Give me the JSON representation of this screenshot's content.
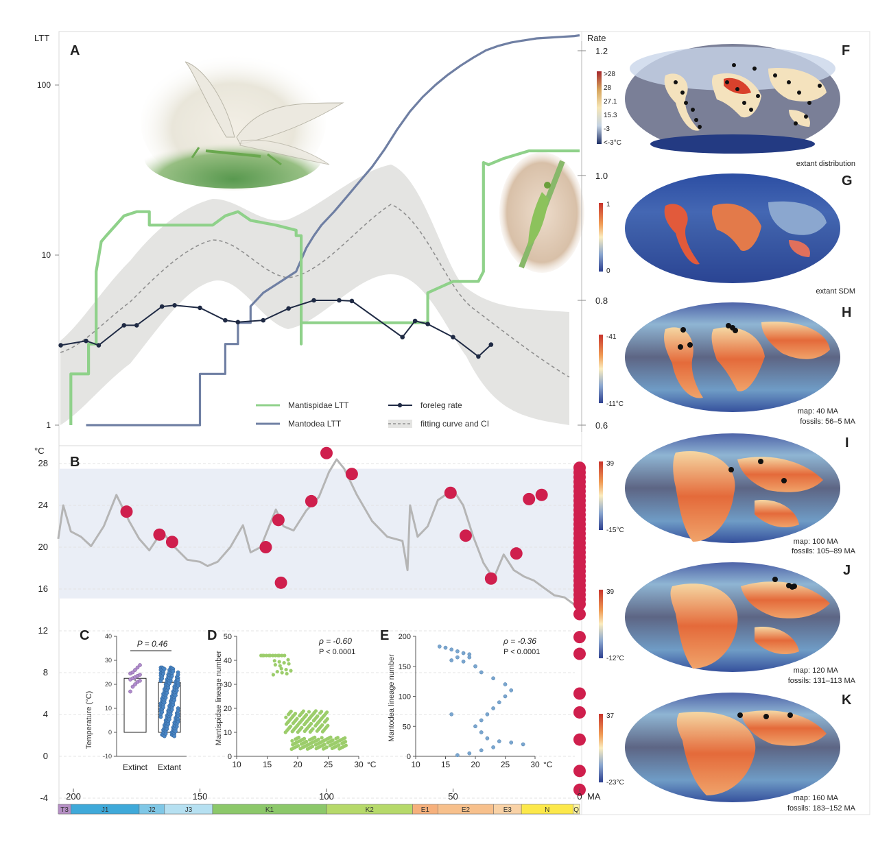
{
  "panel_letters": {
    "A": "A",
    "B": "B",
    "C": "C",
    "D": "D",
    "E": "E",
    "F": "F",
    "G": "G",
    "H": "H",
    "I": "I",
    "J": "J",
    "K": "K"
  },
  "colors": {
    "mantispidae": "#8fd18a",
    "mantodea": "#6f7fa3",
    "foreleg": "#1f2a44",
    "fit": "#8f8f8f",
    "ci": "#e4e4e2",
    "temp_line": "#b5b5b5",
    "temp_point": "#cf1f4d",
    "band": "#eaeef6",
    "extinct": "#b08ccc",
    "extant": "#4a86c5",
    "scatter_d": "#9ccd6b",
    "scatter_e": "#7aa6cf",
    "ocean": "#6b6f8a",
    "map_warm": "#e2763f",
    "map_cold": "#2e4c9c"
  },
  "chart_data": [
    {
      "panel": "A",
      "type": "line",
      "x_unit": "MA",
      "left_axis": {
        "label": "LTT",
        "scale": "log",
        "ticks": [
          "1",
          "10",
          "100"
        ],
        "range": [
          1,
          200
        ]
      },
      "right_axis": {
        "label": "Rate",
        "ticks": [
          "0.6",
          "0.8",
          "1.0",
          "1.2"
        ],
        "range": [
          0.6,
          1.21
        ]
      },
      "series": [
        {
          "name": "Mantispidae LTT",
          "axis": "left",
          "points": [
            [
              201,
              1
            ],
            [
              201,
              2
            ],
            [
              194,
              2
            ],
            [
              194,
              3
            ],
            [
              191,
              3
            ],
            [
              191,
              8
            ],
            [
              189,
              12
            ],
            [
              187,
              13
            ],
            [
              180,
              17
            ],
            [
              175,
              18
            ],
            [
              170,
              18
            ],
            [
              170,
              15
            ],
            [
              160,
              15
            ],
            [
              155,
              15
            ],
            [
              150,
              15
            ],
            [
              145,
              15
            ],
            [
              140,
              17
            ],
            [
              135,
              18
            ],
            [
              130,
              16
            ],
            [
              120,
              15
            ],
            [
              112,
              14
            ],
            [
              112,
              13
            ],
            [
              110,
              13
            ],
            [
              110,
              3
            ],
            [
              110,
              4
            ],
            [
              60,
              4
            ],
            [
              60,
              6
            ],
            [
              50,
              7
            ],
            [
              45,
              7
            ],
            [
              40,
              7
            ],
            [
              38,
              8
            ],
            [
              38,
              35
            ],
            [
              36,
              34
            ],
            [
              30,
              37
            ],
            [
              20,
              41
            ],
            [
              0,
              41
            ]
          ]
        },
        {
          "name": "Mantodea LTT",
          "axis": "left",
          "points": [
            [
              195,
              1
            ],
            [
              150,
              1
            ],
            [
              150,
              2
            ],
            [
              145,
              2
            ],
            [
              140,
              2
            ],
            [
              140,
              3
            ],
            [
              135,
              3
            ],
            [
              135,
              4
            ],
            [
              130,
              4
            ],
            [
              130,
              5
            ],
            [
              125,
              6
            ],
            [
              118,
              7
            ],
            [
              112,
              8
            ],
            [
              108,
              11
            ],
            [
              105,
              13
            ],
            [
              102,
              15
            ],
            [
              97,
              18
            ],
            [
              92,
              22
            ],
            [
              87,
              27
            ],
            [
              82,
              33
            ],
            [
              77,
              42
            ],
            [
              72,
              55
            ],
            [
              67,
              70
            ],
            [
              62,
              85
            ],
            [
              57,
              100
            ],
            [
              52,
              115
            ],
            [
              47,
              130
            ],
            [
              42,
              145
            ],
            [
              37,
              160
            ],
            [
              32,
              170
            ],
            [
              27,
              178
            ],
            [
              22,
              183
            ],
            [
              17,
              188
            ],
            [
              12,
              190
            ],
            [
              7,
              192
            ],
            [
              2,
              194
            ],
            [
              0,
              196
            ]
          ]
        },
        {
          "name": "foreleg rate",
          "axis": "right",
          "points": [
            [
              205,
              0.728
            ],
            [
              195,
              0.735
            ],
            [
              190,
              0.728
            ],
            [
              180,
              0.76
            ],
            [
              175,
              0.76
            ],
            [
              165,
              0.79
            ],
            [
              160,
              0.792
            ],
            [
              150,
              0.788
            ],
            [
              140,
              0.768
            ],
            [
              135,
              0.765
            ],
            [
              125,
              0.768
            ],
            [
              115,
              0.787
            ],
            [
              105,
              0.8
            ],
            [
              95,
              0.8
            ],
            [
              90,
              0.799
            ],
            [
              70,
              0.741
            ],
            [
              65,
              0.767
            ],
            [
              60,
              0.762
            ],
            [
              50,
              0.741
            ],
            [
              40,
              0.71
            ],
            [
              35,
              0.729
            ]
          ]
        }
      ],
      "legend": [
        "Mantispidae LTT",
        "Mantodea LTT",
        "foreleg rate",
        "fitting curve and CI"
      ]
    },
    {
      "panel": "B",
      "type": "scatter",
      "y_unit": "°C",
      "yticks": [
        "-4",
        "0",
        "4",
        "8",
        "12",
        "16",
        "20",
        "24",
        "28"
      ],
      "ylim": [
        -4,
        29
      ],
      "x_ticks": [
        "200",
        "150",
        "100",
        "50",
        "0"
      ],
      "x_unit_label": "MA",
      "temperature_curve": [
        [
          206,
          20.8
        ],
        [
          204,
          24
        ],
        [
          201,
          21.5
        ],
        [
          197,
          21
        ],
        [
          193,
          20.1
        ],
        [
          188,
          22
        ],
        [
          183,
          25
        ],
        [
          178,
          22.5
        ],
        [
          174,
          20.8
        ],
        [
          170,
          19.7
        ],
        [
          165,
          21.5
        ],
        [
          160,
          20
        ],
        [
          155,
          18.8
        ],
        [
          150,
          18.6
        ],
        [
          147,
          18.2
        ],
        [
          143,
          18.6
        ],
        [
          138,
          20
        ],
        [
          133,
          22.1
        ],
        [
          130,
          19.5
        ],
        [
          126,
          20
        ],
        [
          120,
          23.6
        ],
        [
          117,
          22
        ],
        [
          113,
          21.6
        ],
        [
          108,
          23.5
        ],
        [
          103,
          24.8
        ],
        [
          99,
          27.2
        ],
        [
          96,
          28.4
        ],
        [
          93,
          27.5
        ],
        [
          88,
          25
        ],
        [
          82,
          22.5
        ],
        [
          76,
          21
        ],
        [
          70,
          20.6
        ],
        [
          68,
          17.8
        ],
        [
          67,
          24
        ],
        [
          64,
          21
        ],
        [
          60,
          22
        ],
        [
          56,
          24.5
        ],
        [
          50,
          25.5
        ],
        [
          46,
          24
        ],
        [
          42,
          21
        ],
        [
          38,
          18.5
        ],
        [
          34,
          17
        ],
        [
          30,
          19.3
        ],
        [
          26,
          17.8
        ],
        [
          22,
          17.2
        ],
        [
          18,
          16.8
        ],
        [
          14,
          16.1
        ],
        [
          10,
          15.4
        ],
        [
          6,
          15.2
        ],
        [
          2,
          14.5
        ],
        [
          0,
          14.2
        ]
      ],
      "fossil_points": [
        [
          179,
          23.4
        ],
        [
          166,
          21.2
        ],
        [
          161,
          20.5
        ],
        [
          124,
          20
        ],
        [
          119,
          22.6
        ],
        [
          118,
          16.6
        ],
        [
          106,
          24.4
        ],
        [
          100,
          29
        ],
        [
          90,
          27
        ],
        [
          51,
          25.2
        ],
        [
          45,
          21.1
        ],
        [
          35,
          17
        ],
        [
          25,
          19.4
        ],
        [
          20,
          24.6
        ],
        [
          15,
          25
        ]
      ],
      "extant_column_x": 0,
      "extant_column_range": [
        -4,
        27.6
      ]
    },
    {
      "panel": "C",
      "type": "bar",
      "categories": [
        "Extinct",
        "Extant"
      ],
      "values": [
        22.5,
        20.8
      ],
      "errors": [
        1.2,
        0.8
      ],
      "ylabel": "Temperature (°C)",
      "ylim": [
        -10,
        40
      ],
      "yticks": [
        "-10",
        "0",
        "10",
        "20",
        "30",
        "40"
      ],
      "annotation": "P = 0.46",
      "extinct_points": [
        17,
        19,
        20,
        21,
        21.5,
        22,
        22.5,
        23,
        23.5,
        24,
        24.5,
        25,
        26,
        27,
        28
      ],
      "extant_spread": [
        -2,
        27
      ]
    },
    {
      "panel": "D",
      "type": "scatter",
      "xlabel": "°C",
      "ylabel": "Mantispidae lineage number",
      "xlim": [
        10,
        30
      ],
      "ylim": [
        0,
        50
      ],
      "xticks": [
        "10",
        "15",
        "20",
        "25",
        "30"
      ],
      "yticks": [
        "0",
        "10",
        "20",
        "30",
        "40",
        "50"
      ],
      "annotation_rho": "ρ = -0.60",
      "annotation_p": "P < 0.0001",
      "clusters": [
        {
          "x": [
            14,
            18
          ],
          "y": [
            42,
            42
          ]
        },
        {
          "x": [
            16,
            19
          ],
          "y": [
            34,
            41
          ]
        },
        {
          "x": [
            18,
            25
          ],
          "y": [
            10,
            19
          ]
        },
        {
          "x": [
            19,
            28
          ],
          "y": [
            3,
            8
          ]
        }
      ]
    },
    {
      "panel": "E",
      "type": "scatter",
      "xlabel": "°C",
      "ylabel": "Mantodea lineage number",
      "xlim": [
        10,
        30
      ],
      "ylim": [
        0,
        200
      ],
      "xticks": [
        "10",
        "15",
        "20",
        "25",
        "30"
      ],
      "yticks": [
        "0",
        "50",
        "100",
        "150",
        "200"
      ],
      "annotation_rho": "ρ = -0.36",
      "annotation_p": "P < 0.0001",
      "points": [
        [
          14,
          183
        ],
        [
          15,
          181
        ],
        [
          16,
          178
        ],
        [
          17,
          175
        ],
        [
          18,
          172
        ],
        [
          19,
          170
        ],
        [
          17,
          165
        ],
        [
          16,
          160
        ],
        [
          18,
          158
        ],
        [
          19,
          165
        ],
        [
          20,
          150
        ],
        [
          21,
          140
        ],
        [
          23,
          130
        ],
        [
          25,
          120
        ],
        [
          26,
          110
        ],
        [
          25,
          100
        ],
        [
          24,
          90
        ],
        [
          23,
          80
        ],
        [
          22,
          70
        ],
        [
          21,
          60
        ],
        [
          20,
          50
        ],
        [
          21,
          40
        ],
        [
          22,
          30
        ],
        [
          24,
          25
        ],
        [
          26,
          23
        ],
        [
          28,
          20
        ],
        [
          23,
          15
        ],
        [
          21,
          10
        ],
        [
          19,
          5
        ],
        [
          17,
          2
        ],
        [
          16,
          70
        ]
      ]
    },
    {
      "panel": "timescale",
      "type": "table",
      "periods": [
        {
          "label": "T3",
          "from": 206,
          "to": 201,
          "color": "#b58fc4"
        },
        {
          "label": "J1",
          "from": 201,
          "to": 174,
          "color": "#3fa9d9"
        },
        {
          "label": "J2",
          "from": 174,
          "to": 164,
          "color": "#7fc7e6"
        },
        {
          "label": "J3",
          "from": 164,
          "to": 145,
          "color": "#b6e0f1"
        },
        {
          "label": "K1",
          "from": 145,
          "to": 100,
          "color": "#8cc86a"
        },
        {
          "label": "K2",
          "from": 100,
          "to": 66,
          "color": "#b6d96a"
        },
        {
          "label": "E1",
          "from": 66,
          "to": 56,
          "color": "#f6b07c"
        },
        {
          "label": "E2",
          "from": 56,
          "to": 34,
          "color": "#f7c08c"
        },
        {
          "label": "E3",
          "from": 34,
          "to": 23,
          "color": "#f9d2a6"
        },
        {
          "label": "N",
          "from": 23,
          "to": 2.6,
          "color": "#fce84a"
        },
        {
          "label": "Q",
          "from": 2.6,
          "to": 0,
          "color": "#fdf3a2"
        }
      ]
    }
  ],
  "maps": [
    {
      "id": "F",
      "caption_lines": [
        "extant distribution"
      ],
      "legend_labels": [
        ">28",
        "28",
        "27.1",
        "15.3",
        "-3",
        "<-3°C"
      ]
    },
    {
      "id": "G",
      "caption_lines": [
        "extant SDM"
      ],
      "legend_labels": [
        "1",
        "0"
      ]
    },
    {
      "id": "H",
      "caption_lines": [
        "map: 40 MA",
        "fossils: 56–5 MA"
      ],
      "legend_labels": [
        "-41",
        "-11°C"
      ]
    },
    {
      "id": "I",
      "caption_lines": [
        "map: 100 MA",
        "fossils: 105–89 MA"
      ],
      "legend_labels": [
        "39",
        "-15°C"
      ]
    },
    {
      "id": "J",
      "caption_lines": [
        "map: 120 MA",
        "fossils: 131–113 MA"
      ],
      "legend_labels": [
        "39",
        "-12°C"
      ]
    },
    {
      "id": "K",
      "caption_lines": [
        "map: 160 MA",
        "fossils: 183–152 MA"
      ],
      "legend_labels": [
        "37",
        "-23°C"
      ]
    }
  ]
}
